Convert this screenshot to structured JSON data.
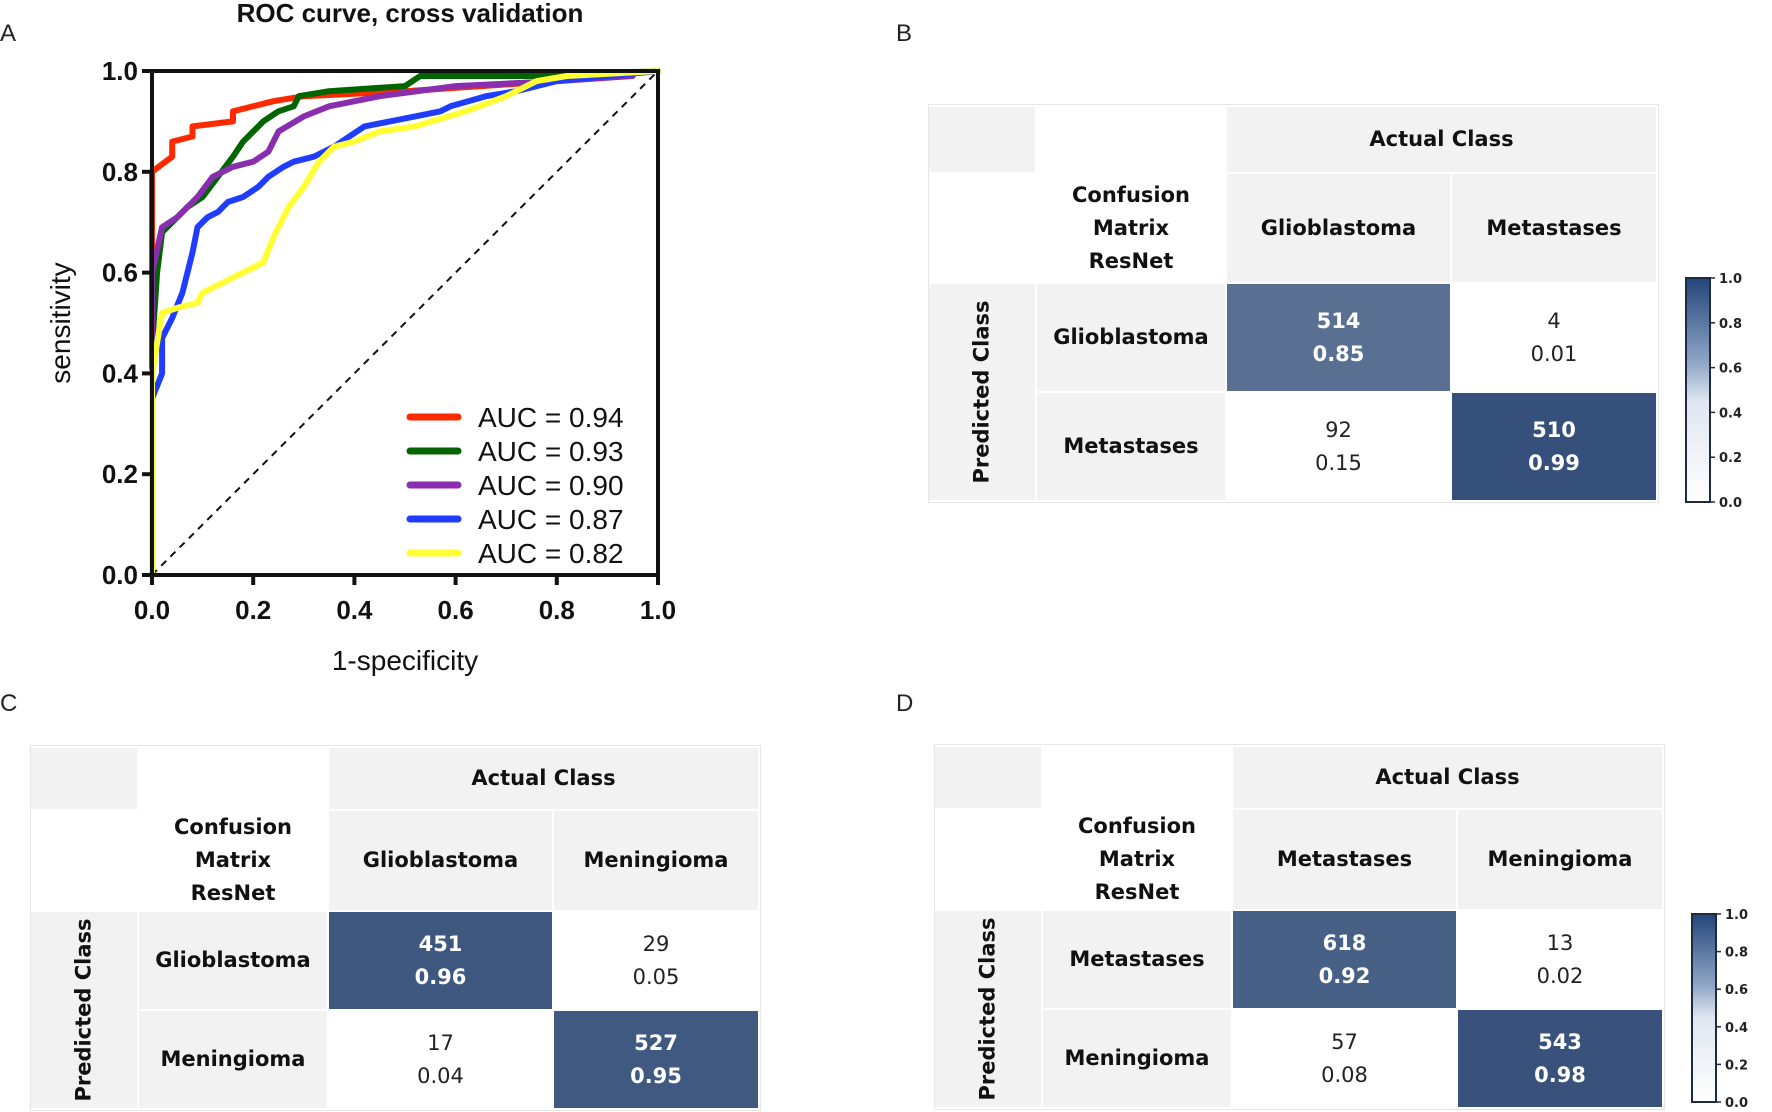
{
  "panel_labels": {
    "a": "A",
    "b": "B",
    "c": "C",
    "d": "D"
  },
  "chart_data": [
    {
      "type": "line",
      "title": "ROC curve, cross validation",
      "xlabel": "1-specificity",
      "ylabel": "sensitivity",
      "xlim": [
        0,
        1
      ],
      "ylim": [
        0,
        1
      ],
      "xticks": [
        "0.0",
        "0.2",
        "0.4",
        "0.6",
        "0.8",
        "1.0"
      ],
      "yticks": [
        "0.0",
        "0.2",
        "0.4",
        "0.6",
        "0.8",
        "1.0"
      ],
      "legend_position": "bottom-right",
      "diagonal_reference": true,
      "series": [
        {
          "name": "AUC = 0.94",
          "color": "#ff2a00",
          "x": [
            0,
            0,
            0,
            0.04,
            0.04,
            0.08,
            0.08,
            0.16,
            0.16,
            0.24,
            0.3,
            0.5,
            0.8,
            1.0
          ],
          "y": [
            0,
            0.7,
            0.8,
            0.83,
            0.86,
            0.87,
            0.89,
            0.9,
            0.92,
            0.94,
            0.95,
            0.96,
            0.98,
            1.0
          ]
        },
        {
          "name": "AUC = 0.93",
          "color": "#006400",
          "x": [
            0,
            0,
            0.01,
            0.02,
            0.04,
            0.07,
            0.1,
            0.13,
            0.16,
            0.18,
            0.22,
            0.25,
            0.28,
            0.29,
            0.35,
            0.5,
            0.53,
            0.8,
            1.0
          ],
          "y": [
            0,
            0.45,
            0.6,
            0.68,
            0.7,
            0.73,
            0.75,
            0.79,
            0.83,
            0.86,
            0.9,
            0.92,
            0.93,
            0.95,
            0.96,
            0.97,
            0.99,
            0.99,
            1.0
          ]
        },
        {
          "name": "AUC = 0.90",
          "color": "#8a2eb0",
          "x": [
            0,
            0,
            0.02,
            0.05,
            0.09,
            0.12,
            0.16,
            0.2,
            0.23,
            0.25,
            0.3,
            0.35,
            0.45,
            0.6,
            0.8,
            0.95
          ],
          "y": [
            0,
            0.6,
            0.69,
            0.71,
            0.75,
            0.79,
            0.81,
            0.82,
            0.84,
            0.88,
            0.91,
            0.93,
            0.95,
            0.97,
            0.98,
            0.99
          ]
        },
        {
          "name": "AUC = 0.87",
          "color": "#1f3cff",
          "x": [
            0,
            0,
            0.02,
            0.02,
            0.04,
            0.06,
            0.08,
            0.09,
            0.11,
            0.13,
            0.15,
            0.18,
            0.21,
            0.23,
            0.26,
            0.28,
            0.32,
            0.36,
            0.39,
            0.42,
            0.47,
            0.52,
            0.57,
            0.59,
            0.66,
            0.72,
            0.8,
            1.0
          ],
          "y": [
            0,
            0.35,
            0.4,
            0.47,
            0.51,
            0.56,
            0.64,
            0.69,
            0.71,
            0.72,
            0.74,
            0.75,
            0.77,
            0.79,
            0.81,
            0.82,
            0.83,
            0.85,
            0.87,
            0.89,
            0.9,
            0.91,
            0.92,
            0.93,
            0.95,
            0.96,
            0.98,
            1.0
          ]
        },
        {
          "name": "AUC = 0.82",
          "color": "#ffff33",
          "x": [
            0,
            0,
            0.02,
            0.05,
            0.09,
            0.1,
            0.14,
            0.18,
            0.22,
            0.24,
            0.27,
            0.3,
            0.33,
            0.36,
            0.4,
            0.45,
            0.52,
            0.62,
            0.7,
            0.76,
            0.82,
            1.0
          ],
          "y": [
            0,
            0.4,
            0.52,
            0.53,
            0.54,
            0.56,
            0.58,
            0.6,
            0.62,
            0.67,
            0.73,
            0.77,
            0.82,
            0.85,
            0.86,
            0.88,
            0.89,
            0.92,
            0.95,
            0.98,
            0.99,
            1.0
          ]
        }
      ]
    },
    {
      "type": "table",
      "id": "B",
      "title_lines": [
        "Confusion",
        "Matrix",
        "ResNet"
      ],
      "actual_label": "Actual Class",
      "predicted_label": "Predicted Class",
      "classes": [
        "Glioblastoma",
        "Metastases"
      ],
      "counts": [
        [
          514,
          4
        ],
        [
          92,
          510
        ]
      ],
      "rates": [
        [
          "0.85",
          "0.01"
        ],
        [
          "0.15",
          "0.99"
        ]
      ],
      "colorbar": {
        "min": 0,
        "max": 1,
        "ticks": [
          "1.0",
          "0.8",
          "0.6",
          "0.4",
          "0.2",
          "0.0"
        ]
      }
    },
    {
      "type": "table",
      "id": "C",
      "title_lines": [
        "Confusion",
        "Matrix",
        "ResNet"
      ],
      "actual_label": "Actual Class",
      "predicted_label": "Predicted Class",
      "classes": [
        "Glioblastoma",
        "Meningioma"
      ],
      "counts": [
        [
          451,
          29
        ],
        [
          17,
          527
        ]
      ],
      "rates": [
        [
          "0.96",
          "0.05"
        ],
        [
          "0.04",
          "0.95"
        ]
      ]
    },
    {
      "type": "table",
      "id": "D",
      "title_lines": [
        "Confusion",
        "Matrix",
        "ResNet"
      ],
      "actual_label": "Actual Class",
      "predicted_label": "Predicted Class",
      "classes": [
        "Metastases",
        "Meningioma"
      ],
      "counts": [
        [
          618,
          13
        ],
        [
          57,
          543
        ]
      ],
      "rates": [
        [
          "0.92",
          "0.02"
        ],
        [
          "0.08",
          "0.98"
        ]
      ],
      "colorbar": {
        "min": 0,
        "max": 1,
        "ticks": [
          "1.0",
          "0.8",
          "0.6",
          "0.4",
          "0.2",
          "0.0"
        ]
      }
    }
  ]
}
